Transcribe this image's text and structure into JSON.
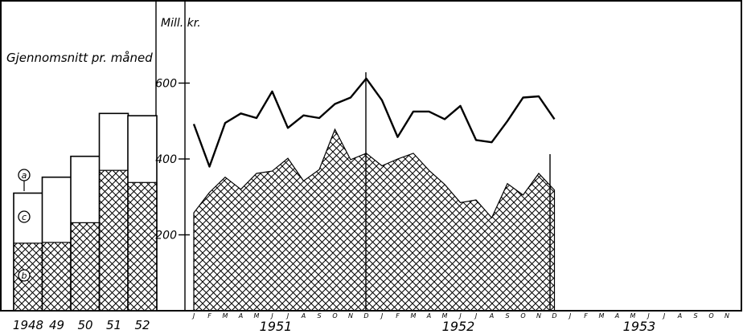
{
  "chart_data": [
    {
      "type": "bar",
      "title": "Gjennomsnitt pr. måned",
      "categories": [
        "1948",
        "49",
        "50",
        "51",
        "52"
      ],
      "stacked": true,
      "series": [
        {
          "name": "b",
          "values": [
            178,
            180,
            232,
            370,
            338
          ]
        },
        {
          "name": "c",
          "values": [
            132,
            172,
            175,
            150,
            176
          ]
        }
      ],
      "ylim": [
        0,
        620
      ],
      "markers": [
        "a",
        "c",
        "b"
      ]
    },
    {
      "type": "area",
      "ylabel": "Mill. kr.",
      "yticks": [
        200,
        400,
        600
      ],
      "ylim": [
        0,
        620
      ],
      "month_labels": [
        "J",
        "F",
        "M",
        "A",
        "M",
        "J",
        "J",
        "A",
        "S",
        "O",
        "N",
        "D"
      ],
      "year_labels": [
        "1951",
        "1952",
        "1953"
      ],
      "series": [
        {
          "values": [
            492,
            380,
            495,
            520,
            508,
            578,
            482,
            515,
            508,
            545,
            562,
            612,
            555,
            458,
            525,
            525,
            505,
            540,
            450,
            444,
            500,
            562,
            565,
            505
          ]
        },
        {
          "values": [
            258,
            312,
            352,
            320,
            362,
            368,
            402,
            342,
            372,
            478,
            398,
            415,
            382,
            400,
            415,
            370,
            333,
            285,
            292,
            245,
            335,
            305,
            362,
            318
          ]
        }
      ]
    }
  ]
}
